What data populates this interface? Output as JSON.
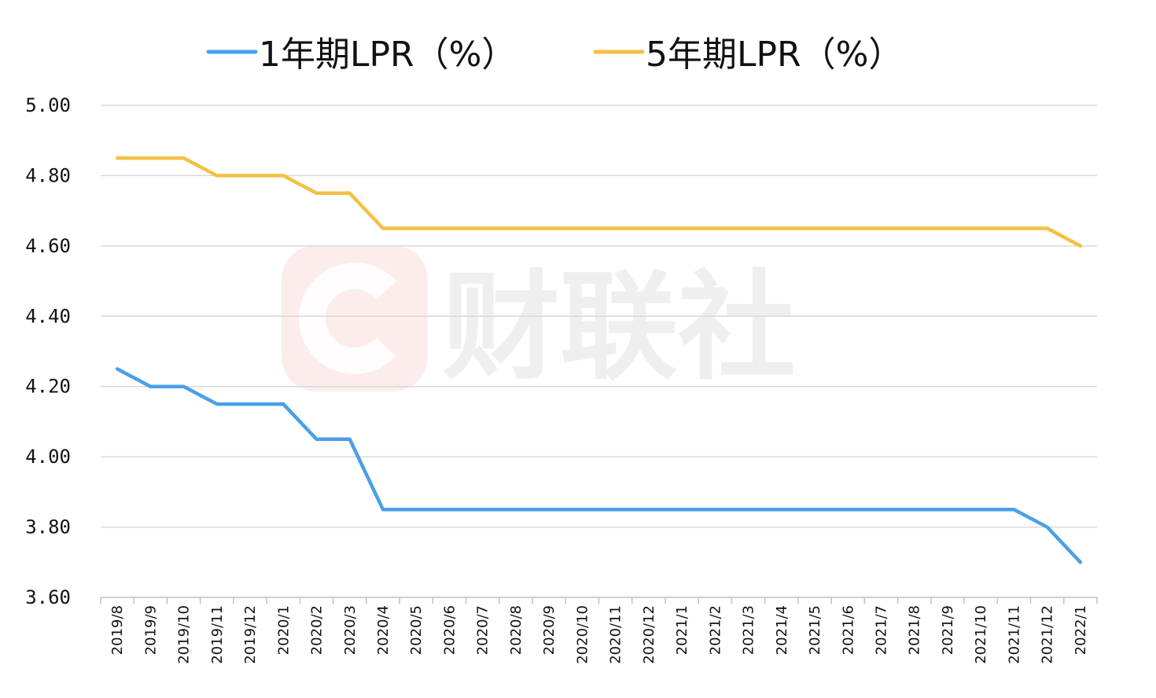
{
  "chart_data": {
    "type": "line",
    "categories": [
      "2019/8",
      "2019/9",
      "2019/10",
      "2019/11",
      "2019/12",
      "2020/1",
      "2020/2",
      "2020/3",
      "2020/4",
      "2020/5",
      "2020/6",
      "2020/7",
      "2020/8",
      "2020/9",
      "2020/10",
      "2020/11",
      "2020/12",
      "2021/1",
      "2021/2",
      "2021/3",
      "2021/4",
      "2021/5",
      "2021/6",
      "2021/7",
      "2021/8",
      "2021/9",
      "2021/10",
      "2021/11",
      "2021/12",
      "2022/1"
    ],
    "series": [
      {
        "name": "1年期LPR（%）",
        "color": "#4a9fe8",
        "values": [
          4.25,
          4.2,
          4.2,
          4.15,
          4.15,
          4.15,
          4.05,
          4.05,
          3.85,
          3.85,
          3.85,
          3.85,
          3.85,
          3.85,
          3.85,
          3.85,
          3.85,
          3.85,
          3.85,
          3.85,
          3.85,
          3.85,
          3.85,
          3.85,
          3.85,
          3.85,
          3.85,
          3.85,
          3.8,
          3.7
        ]
      },
      {
        "name": "5年期LPR（%）",
        "color": "#f2c144",
        "values": [
          4.85,
          4.85,
          4.85,
          4.8,
          4.8,
          4.8,
          4.75,
          4.75,
          4.65,
          4.65,
          4.65,
          4.65,
          4.65,
          4.65,
          4.65,
          4.65,
          4.65,
          4.65,
          4.65,
          4.65,
          4.65,
          4.65,
          4.65,
          4.65,
          4.65,
          4.65,
          4.65,
          4.65,
          4.65,
          4.6
        ]
      }
    ],
    "yticks": [
      "3.60",
      "3.80",
      "4.00",
      "4.20",
      "4.40",
      "4.60",
      "4.80",
      "5.00"
    ],
    "ylim": [
      3.6,
      5.0
    ],
    "grid": true,
    "legend_position": "top-center"
  },
  "watermark": {
    "text": "财联社",
    "logo_icon": "c-logo-icon",
    "logo_color": "#f5c9c9"
  }
}
